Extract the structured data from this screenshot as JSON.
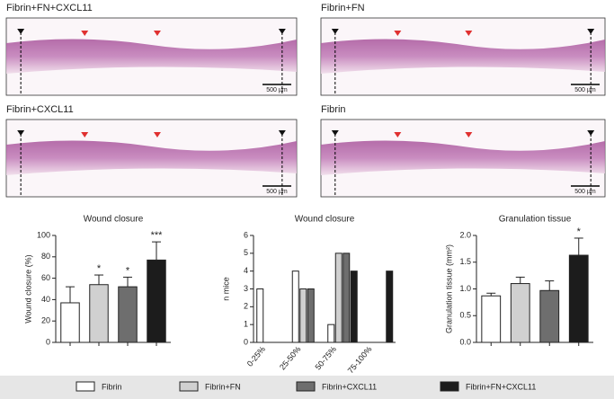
{
  "panels": [
    {
      "title": "Fibrin+FN+CXCL11",
      "scale_bar": "500 µm"
    },
    {
      "title": "Fibrin+FN",
      "scale_bar": "500 µm"
    },
    {
      "title": "Fibrin+CXCL11",
      "scale_bar": "500 µm"
    },
    {
      "title": "Fibrin",
      "scale_bar": "500 µm"
    }
  ],
  "legend": [
    {
      "name": "Fibrin",
      "color": "#ffffff"
    },
    {
      "name": "Fibrin+FN",
      "color": "#d0d0d0"
    },
    {
      "name": "Fibrin+CXCL11",
      "color": "#6e6e6e"
    },
    {
      "name": "Fibrin+FN+CXCL11",
      "color": "#1c1c1c"
    }
  ],
  "chart_data": [
    {
      "type": "bar",
      "title": "Wound closure",
      "ylabel": "Wound closure (%)",
      "values": [
        37,
        54,
        52,
        77
      ],
      "errors": [
        15,
        9,
        9,
        17
      ],
      "annotations": [
        null,
        "*",
        "*",
        "***"
      ],
      "ylim": [
        0,
        100
      ],
      "yticks": [
        0,
        20,
        40,
        60,
        80,
        100
      ]
    },
    {
      "type": "grouped_bar",
      "title": "Wound closure",
      "ylabel": "n mice",
      "categories": [
        "0-25%",
        "25-50%",
        "50-75%",
        "75-100%"
      ],
      "series": [
        {
          "values": [
            3,
            4,
            1,
            0
          ]
        },
        {
          "values": [
            0,
            3,
            5,
            0
          ]
        },
        {
          "values": [
            0,
            3,
            5,
            0
          ]
        },
        {
          "values": [
            0,
            0,
            4,
            4
          ]
        }
      ],
      "ylim": [
        0,
        6
      ],
      "yticks": [
        0,
        1,
        2,
        3,
        4,
        5,
        6
      ]
    },
    {
      "type": "bar",
      "title": "Granulation tissue",
      "ylabel": "Granulation tissue (mm²)",
      "values": [
        0.87,
        1.1,
        0.97,
        1.63
      ],
      "errors": [
        0.05,
        0.12,
        0.18,
        0.32
      ],
      "annotations": [
        null,
        null,
        null,
        "*"
      ],
      "ylim": [
        0,
        2
      ],
      "yticks": [
        {
          "value": 0,
          "label": "0.0"
        },
        0.5,
        {
          "value": 1,
          "label": "1.0"
        },
        1.5,
        {
          "value": 2,
          "label": "2.0"
        }
      ]
    }
  ]
}
